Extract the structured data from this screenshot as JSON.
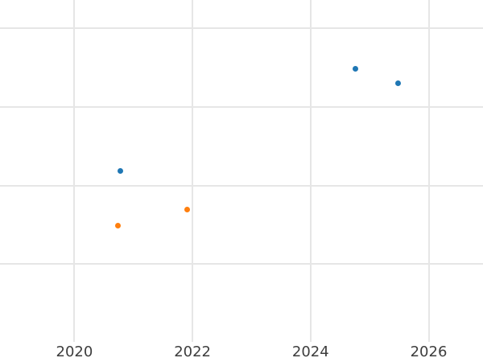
{
  "chart_data": {
    "type": "scatter",
    "title": "",
    "xlabel": "",
    "ylabel": "",
    "grid": true,
    "legend": "none",
    "background_color": "#ffffff",
    "grid_color": "#e6e6e6",
    "tick_label_color": "#3d3d3d",
    "xlim": [
      2018.74,
      2026.92
    ],
    "ylim": [
      -1.245,
      3.36
    ],
    "x_ticks": [
      {
        "value": 2020,
        "label": "2020"
      },
      {
        "value": 2022,
        "label": "2022"
      },
      {
        "value": 2024,
        "label": "2024"
      },
      {
        "value": 2026,
        "label": "2026"
      }
    ],
    "y_gridline_values": [
      0,
      1,
      2,
      3
    ],
    "y_tick_labels_visible": false,
    "y_unit": "gridline-units",
    "marker_diameter_px": 7,
    "series": [
      {
        "name": "series-blue",
        "color": "#1f77b4",
        "points": [
          {
            "x": 2020.78,
            "y": 1.19
          },
          {
            "x": 2024.76,
            "y": 2.49
          },
          {
            "x": 2025.48,
            "y": 2.3
          }
        ]
      },
      {
        "name": "series-orange",
        "color": "#ff7f0e",
        "points": [
          {
            "x": 2020.74,
            "y": 0.49
          },
          {
            "x": 2021.91,
            "y": 0.69
          }
        ]
      }
    ]
  }
}
